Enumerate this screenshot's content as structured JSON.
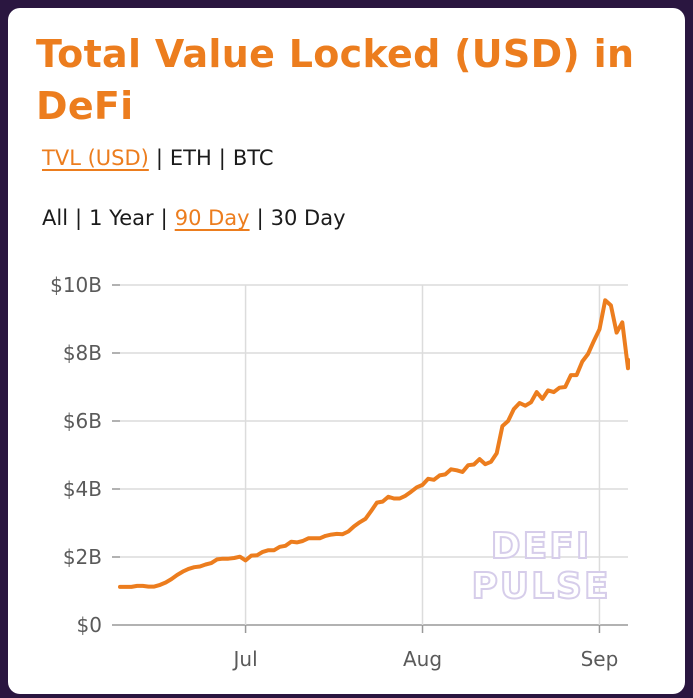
{
  "chart_title": "Total Value Locked (USD) in DeFi",
  "metric_selector": {
    "options": [
      "TVL (USD)",
      "ETH",
      "BTC"
    ],
    "separator": "|",
    "active": "TVL (USD)"
  },
  "range_selector": {
    "options": [
      "All",
      "1 Year",
      "90 Day",
      "30 Day"
    ],
    "separator": "|",
    "active": "90 Day"
  },
  "watermark": {
    "line1": "DEFI",
    "line2": "PULSE"
  },
  "colors": {
    "accent": "#ec7d1e",
    "background": "#2a1640",
    "grid": "#dcdcdc",
    "axis": "#999999"
  },
  "chart_data": {
    "type": "line",
    "title": "Total Value Locked (USD) in DeFi",
    "xlabel": "",
    "ylabel": "",
    "y_ticks": [
      {
        "value": 0,
        "label": "$0"
      },
      {
        "value": 2,
        "label": "$2B"
      },
      {
        "value": 4,
        "label": "$4B"
      },
      {
        "value": 6,
        "label": "$6B"
      },
      {
        "value": 8,
        "label": "$8B"
      },
      {
        "value": 10,
        "label": "$10B"
      }
    ],
    "ylim": [
      0,
      10
    ],
    "y_unit": "billions USD",
    "x_ticks": [
      {
        "date": "2020-07-01",
        "label": "Jul"
      },
      {
        "date": "2020-08-01",
        "label": "Aug"
      },
      {
        "date": "2020-09-01",
        "label": "Sep"
      }
    ],
    "xlim": [
      "2020-06-09",
      "2020-09-06"
    ],
    "grid": true,
    "series": [
      {
        "color": "#ec7d1e",
        "points": [
          [
            "2020-06-09",
            1.12
          ],
          [
            "2020-06-10",
            1.12
          ],
          [
            "2020-06-11",
            1.12
          ],
          [
            "2020-06-12",
            1.15
          ],
          [
            "2020-06-13",
            1.15
          ],
          [
            "2020-06-14",
            1.13
          ],
          [
            "2020-06-15",
            1.13
          ],
          [
            "2020-06-16",
            1.18
          ],
          [
            "2020-06-17",
            1.25
          ],
          [
            "2020-06-18",
            1.35
          ],
          [
            "2020-06-19",
            1.47
          ],
          [
            "2020-06-20",
            1.57
          ],
          [
            "2020-06-21",
            1.65
          ],
          [
            "2020-06-22",
            1.7
          ],
          [
            "2020-06-23",
            1.72
          ],
          [
            "2020-06-24",
            1.78
          ],
          [
            "2020-06-25",
            1.82
          ],
          [
            "2020-06-26",
            1.93
          ],
          [
            "2020-06-27",
            1.95
          ],
          [
            "2020-06-28",
            1.95
          ],
          [
            "2020-06-29",
            1.97
          ],
          [
            "2020-06-30",
            2.01
          ],
          [
            "2020-07-01",
            1.9
          ],
          [
            "2020-07-02",
            2.04
          ],
          [
            "2020-07-03",
            2.05
          ],
          [
            "2020-07-04",
            2.15
          ],
          [
            "2020-07-05",
            2.2
          ],
          [
            "2020-07-06",
            2.2
          ],
          [
            "2020-07-07",
            2.3
          ],
          [
            "2020-07-08",
            2.33
          ],
          [
            "2020-07-09",
            2.45
          ],
          [
            "2020-07-10",
            2.43
          ],
          [
            "2020-07-11",
            2.47
          ],
          [
            "2020-07-12",
            2.55
          ],
          [
            "2020-07-13",
            2.55
          ],
          [
            "2020-07-14",
            2.55
          ],
          [
            "2020-07-15",
            2.62
          ],
          [
            "2020-07-16",
            2.66
          ],
          [
            "2020-07-17",
            2.68
          ],
          [
            "2020-07-18",
            2.67
          ],
          [
            "2020-07-19",
            2.75
          ],
          [
            "2020-07-20",
            2.9
          ],
          [
            "2020-07-21",
            3.02
          ],
          [
            "2020-07-22",
            3.12
          ],
          [
            "2020-07-23",
            3.35
          ],
          [
            "2020-07-24",
            3.6
          ],
          [
            "2020-07-25",
            3.63
          ],
          [
            "2020-07-26",
            3.77
          ],
          [
            "2020-07-27",
            3.72
          ],
          [
            "2020-07-28",
            3.72
          ],
          [
            "2020-07-29",
            3.8
          ],
          [
            "2020-07-30",
            3.92
          ],
          [
            "2020-07-31",
            4.05
          ],
          [
            "2020-08-01",
            4.12
          ],
          [
            "2020-08-02",
            4.3
          ],
          [
            "2020-08-03",
            4.27
          ],
          [
            "2020-08-04",
            4.4
          ],
          [
            "2020-08-05",
            4.43
          ],
          [
            "2020-08-06",
            4.58
          ],
          [
            "2020-08-07",
            4.55
          ],
          [
            "2020-08-08",
            4.5
          ],
          [
            "2020-08-09",
            4.7
          ],
          [
            "2020-08-10",
            4.72
          ],
          [
            "2020-08-11",
            4.88
          ],
          [
            "2020-08-12",
            4.73
          ],
          [
            "2020-08-13",
            4.8
          ],
          [
            "2020-08-14",
            5.05
          ],
          [
            "2020-08-15",
            5.85
          ],
          [
            "2020-08-16",
            6.0
          ],
          [
            "2020-08-17",
            6.35
          ],
          [
            "2020-08-18",
            6.53
          ],
          [
            "2020-08-19",
            6.45
          ],
          [
            "2020-08-20",
            6.55
          ],
          [
            "2020-08-21",
            6.85
          ],
          [
            "2020-08-22",
            6.65
          ],
          [
            "2020-08-23",
            6.9
          ],
          [
            "2020-08-24",
            6.85
          ],
          [
            "2020-08-25",
            6.98
          ],
          [
            "2020-08-26",
            7.0
          ],
          [
            "2020-08-27",
            7.35
          ],
          [
            "2020-08-28",
            7.35
          ],
          [
            "2020-08-29",
            7.75
          ],
          [
            "2020-08-30",
            7.97
          ],
          [
            "2020-08-31",
            8.35
          ],
          [
            "2020-09-01",
            8.7
          ],
          [
            "2020-09-02",
            9.55
          ],
          [
            "2020-09-03",
            9.4
          ],
          [
            "2020-09-04",
            8.6
          ],
          [
            "2020-09-05",
            8.9
          ],
          [
            "2020-09-06",
            7.55
          ],
          [
            "2020-09-06",
            7.8
          ]
        ]
      }
    ]
  }
}
